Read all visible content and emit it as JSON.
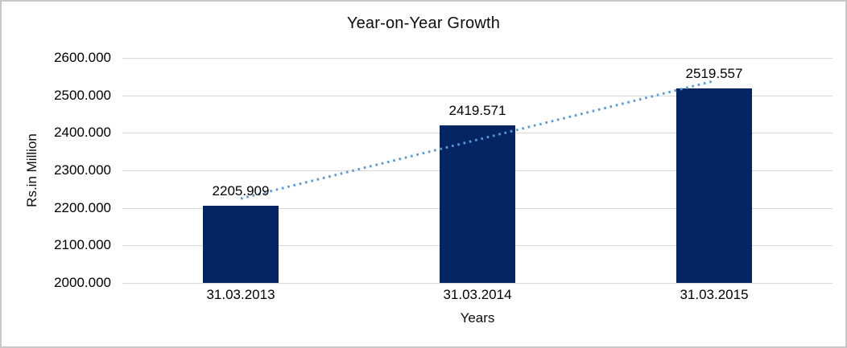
{
  "chart_data": {
    "type": "bar",
    "title": "Year-on-Year Growth",
    "xlabel": "Years",
    "ylabel": "Rs.in Million",
    "categories": [
      "31.03.2013",
      "31.03.2014",
      "31.03.2015"
    ],
    "values": [
      2205.909,
      2419.571,
      2519.557
    ],
    "data_labels": [
      "2205.909",
      "2419.571",
      "2519.557"
    ],
    "ylim": [
      2000,
      2600
    ],
    "ytick_step": 100,
    "ytick_labels": [
      "2000.000",
      "2100.000",
      "2200.000",
      "2300.000",
      "2400.000",
      "2500.000",
      "2600.000"
    ],
    "grid": true,
    "legend": "none",
    "colors": {
      "bar": "#042563",
      "trendline": "#5B9BD5",
      "gridline": "#D9D9D9",
      "axis_line": "#D9D9D9",
      "text": "#000000",
      "border": "#C8C8C8",
      "background": "#FFFFFF"
    },
    "trendline": {
      "type": "linear",
      "style": "dotted",
      "start_value": 2224.9,
      "end_value": 2538.5
    }
  }
}
